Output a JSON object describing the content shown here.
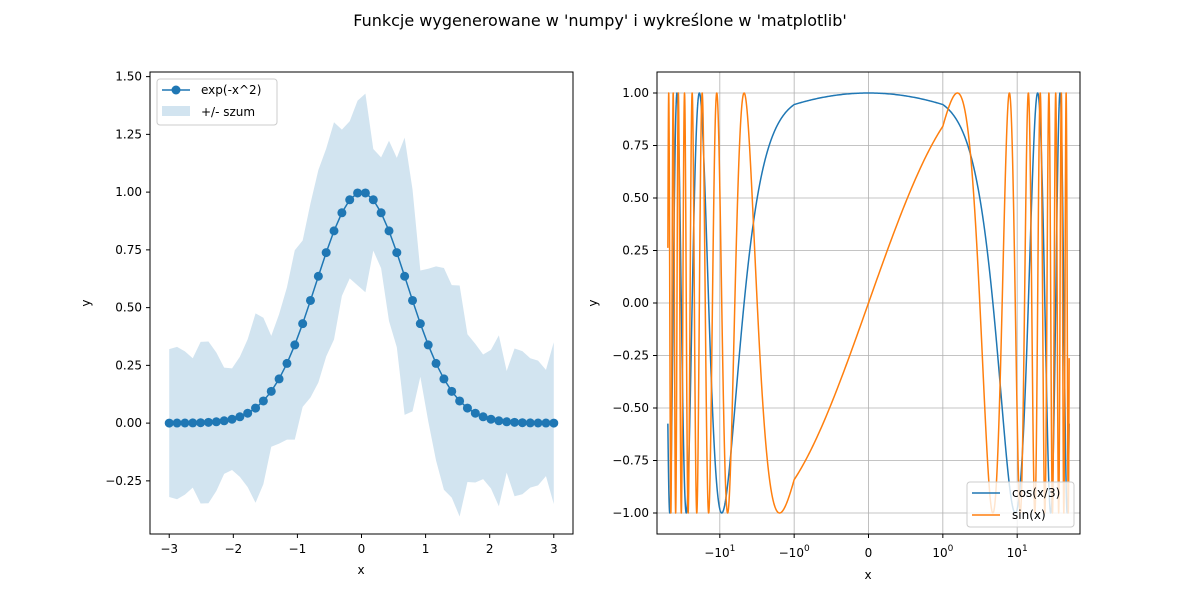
{
  "figure": {
    "suptitle": "Funkcje wygenerowane w 'numpy' i wykreślone w 'matplotlib'"
  },
  "colors": {
    "blue": "#1f77b4",
    "orange": "#ff7f0e",
    "band": "#1f77b4",
    "grid": "#b0b0b0"
  },
  "chart_data": [
    {
      "type": "line",
      "xlabel": "x",
      "ylabel": "y",
      "xlim": [
        -3.3,
        3.3
      ],
      "ylim": [
        -0.48,
        1.52
      ],
      "grid": false,
      "legend_placement": "top-left",
      "xticks": [
        {
          "value": -3,
          "label": "−3"
        },
        {
          "value": -2,
          "label": "−2"
        },
        {
          "value": -1,
          "label": "−1"
        },
        {
          "value": 0,
          "label": "0"
        },
        {
          "value": 1,
          "label": "1"
        },
        {
          "value": 2,
          "label": "2"
        },
        {
          "value": 3,
          "label": "3"
        }
      ],
      "yticks": [
        {
          "value": -0.25,
          "label": "−0.25"
        },
        {
          "value": 0.0,
          "label": "0.00"
        },
        {
          "value": 0.25,
          "label": "0.25"
        },
        {
          "value": 0.5,
          "label": "0.50"
        },
        {
          "value": 0.75,
          "label": "0.75"
        },
        {
          "value": 1.0,
          "label": "1.00"
        },
        {
          "value": 1.25,
          "label": "1.25"
        },
        {
          "value": 1.5,
          "label": "1.50"
        }
      ],
      "series": [
        {
          "name": "exp(-x^2)",
          "kind": "line-marker",
          "color": "#1f77b4",
          "x": [
            -3.0,
            -2.878,
            -2.755,
            -2.633,
            -2.51,
            -2.388,
            -2.265,
            -2.143,
            -2.02,
            -1.898,
            -1.776,
            -1.653,
            -1.531,
            -1.408,
            -1.286,
            -1.163,
            -1.041,
            -0.918,
            -0.796,
            -0.673,
            -0.551,
            -0.429,
            -0.306,
            -0.184,
            -0.061,
            0.061,
            0.184,
            0.306,
            0.429,
            0.551,
            0.673,
            0.796,
            0.918,
            1.041,
            1.163,
            1.286,
            1.408,
            1.531,
            1.653,
            1.776,
            1.898,
            2.02,
            2.143,
            2.265,
            2.388,
            2.51,
            2.633,
            2.755,
            2.878,
            3.0
          ],
          "y": [
            0.0001,
            0.0003,
            0.0005,
            0.001,
            0.0018,
            0.0033,
            0.0059,
            0.0101,
            0.0169,
            0.0273,
            0.0428,
            0.065,
            0.096,
            0.1376,
            0.1914,
            0.2584,
            0.3385,
            0.4305,
            0.5311,
            0.6358,
            0.7383,
            0.8322,
            0.9106,
            0.9668,
            0.9963,
            0.9963,
            0.9668,
            0.9106,
            0.8322,
            0.7383,
            0.6358,
            0.5311,
            0.4305,
            0.3385,
            0.2584,
            0.1914,
            0.1376,
            0.096,
            0.065,
            0.0428,
            0.0273,
            0.0169,
            0.0101,
            0.0059,
            0.0033,
            0.0018,
            0.001,
            0.0005,
            0.0003,
            0.0001
          ]
        },
        {
          "name": "+/- szum",
          "kind": "band",
          "color": "#1f77b4",
          "x": [
            -3.0,
            -2.878,
            -2.755,
            -2.633,
            -2.51,
            -2.388,
            -2.265,
            -2.143,
            -2.02,
            -1.898,
            -1.776,
            -1.653,
            -1.531,
            -1.408,
            -1.286,
            -1.163,
            -1.041,
            -0.918,
            -0.796,
            -0.673,
            -0.551,
            -0.429,
            -0.306,
            -0.184,
            -0.061,
            0.061,
            0.184,
            0.306,
            0.429,
            0.551,
            0.673,
            0.796,
            0.918,
            1.041,
            1.163,
            1.286,
            1.408,
            1.531,
            1.653,
            1.776,
            1.898,
            2.02,
            2.143,
            2.265,
            2.388,
            2.51,
            2.633,
            2.755,
            2.878,
            3.0
          ],
          "noise": [
            0.32,
            0.33,
            0.31,
            0.28,
            0.35,
            0.35,
            0.3,
            0.23,
            0.22,
            0.26,
            0.32,
            0.41,
            0.36,
            0.24,
            0.28,
            0.33,
            0.41,
            0.36,
            0.42,
            0.46,
            0.45,
            0.47,
            0.36,
            0.34,
            0.4,
            0.43,
            0.22,
            0.24,
            0.39,
            0.41,
            0.6,
            0.48,
            0.23,
            0.33,
            0.42,
            0.48,
            0.46,
            0.5,
            0.32,
            0.3,
            0.27,
            0.3,
            0.37,
            0.22,
            0.32,
            0.31,
            0.28,
            0.27,
            0.23,
            0.35
          ]
        }
      ]
    },
    {
      "type": "line",
      "xlabel": "x",
      "ylabel": "y",
      "xscale": "symlog",
      "xlim": [
        -70,
        70
      ],
      "ylim": [
        -1.1,
        1.1
      ],
      "grid": true,
      "legend_placement": "bottom-right",
      "xticks": [
        {
          "value": -10,
          "label": "−10",
          "sup": "1"
        },
        {
          "value": -1,
          "label": "−10",
          "sup": "0"
        },
        {
          "value": 0,
          "label": "0",
          "sup": ""
        },
        {
          "value": 1,
          "label": "10",
          "sup": "0"
        },
        {
          "value": 10,
          "label": "10",
          "sup": "1"
        }
      ],
      "yticks": [
        {
          "value": -1.0,
          "label": "−1.00"
        },
        {
          "value": -0.75,
          "label": "−0.75"
        },
        {
          "value": -0.5,
          "label": "−0.50"
        },
        {
          "value": -0.25,
          "label": "−0.25"
        },
        {
          "value": 0.0,
          "label": "0.00"
        },
        {
          "value": 0.25,
          "label": "0.25"
        },
        {
          "value": 0.5,
          "label": "0.50"
        },
        {
          "value": 0.75,
          "label": "0.75"
        },
        {
          "value": 1.0,
          "label": "1.00"
        }
      ],
      "x_range": [
        -50,
        50
      ],
      "series": [
        {
          "name": "cos(x/3)",
          "function": "cos(x/3)",
          "color": "#1f77b4"
        },
        {
          "name": "sin(x)",
          "function": "sin(x)",
          "color": "#ff7f0e"
        }
      ]
    }
  ]
}
